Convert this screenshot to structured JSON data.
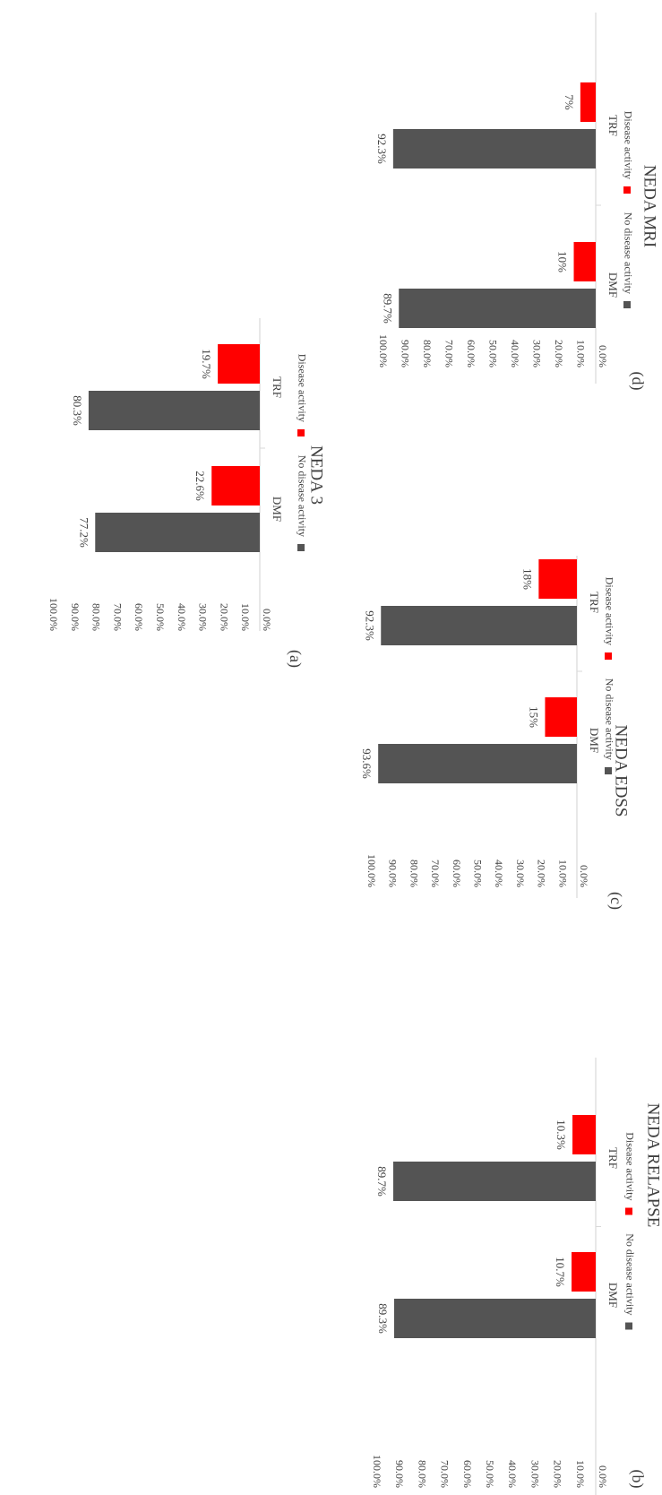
{
  "colors": {
    "no_activity": "#545454",
    "activity": "#ff0000",
    "axis": "#d9d9d9",
    "text": "#404040"
  },
  "chart_data": [
    {
      "type": "bar",
      "panel": "(a)",
      "title": "NEDA 3",
      "categories": [
        "DMF",
        "TRF"
      ],
      "series": [
        {
          "name": "No disease activity",
          "values": [
            77.2,
            80.3
          ],
          "labels": [
            "77.2%",
            "80.3%"
          ]
        },
        {
          "name": "Disease activity",
          "values": [
            22.6,
            19.7
          ],
          "labels": [
            "22.6%",
            "19.7%"
          ]
        }
      ],
      "ylim": [
        0,
        100
      ],
      "yticks": [
        "0.0%",
        "10.0%",
        "20.0%",
        "30.0%",
        "40.0%",
        "50.0%",
        "60.0%",
        "70.0%",
        "80.0%",
        "90.0%",
        "100.0%"
      ],
      "legend_position": "bottom",
      "orientation": "rotated 90 degrees clockwise"
    },
    {
      "type": "bar",
      "panel": "(b)",
      "title": "NEDA RELAPSE",
      "categories": [
        "DMF",
        "TRF"
      ],
      "series": [
        {
          "name": "No disease activity",
          "values": [
            89.3,
            89.7
          ],
          "labels": [
            "89.3%",
            "89.7%"
          ]
        },
        {
          "name": "Disease activity",
          "values": [
            10.7,
            10.3
          ],
          "labels": [
            "10.7%",
            "10.3%"
          ]
        }
      ],
      "ylim": [
        0,
        100
      ],
      "yticks": [
        "0.0%",
        "10.0%",
        "20.0%",
        "30.0%",
        "40.0%",
        "50.0%",
        "60.0%",
        "70.0%",
        "80.0%",
        "90.0%",
        "100.0%"
      ],
      "legend_position": "bottom",
      "orientation": "rotated 90 degrees clockwise"
    },
    {
      "type": "bar",
      "panel": "(c)",
      "title": "NEDA EDSS",
      "categories": [
        "DMF",
        "TRF"
      ],
      "series": [
        {
          "name": "No disease activity",
          "values": [
            93.6,
            92.3
          ],
          "labels": [
            "93.6%",
            "92.3%"
          ]
        },
        {
          "name": "Disease activity",
          "values": [
            15,
            18
          ],
          "labels": [
            "15%",
            "18%"
          ]
        }
      ],
      "ylim": [
        0,
        100
      ],
      "yticks": [
        "0.0%",
        "10.0%",
        "20.0%",
        "30.0%",
        "40.0%",
        "50.0%",
        "60.0%",
        "70.0%",
        "80.0%",
        "90.0%",
        "100.0%"
      ],
      "legend_position": "bottom",
      "orientation": "rotated 90 degrees clockwise"
    },
    {
      "type": "bar",
      "panel": "(d)",
      "title": "NEDA MRI",
      "categories": [
        "DMF",
        "TRF"
      ],
      "series": [
        {
          "name": "No disease activity",
          "values": [
            89.7,
            92.3
          ],
          "labels": [
            "89.7%",
            "92.3%"
          ]
        },
        {
          "name": "Disease activity",
          "values": [
            10,
            7
          ],
          "labels": [
            "10%",
            "7%"
          ]
        }
      ],
      "ylim": [
        0,
        100
      ],
      "yticks": [
        "0.0%",
        "10.0%",
        "20.0%",
        "30.0%",
        "40.0%",
        "50.0%",
        "60.0%",
        "70.0%",
        "80.0%",
        "90.0%",
        "100.0%"
      ],
      "legend_position": "bottom",
      "orientation": "rotated 90 degrees clockwise"
    }
  ]
}
